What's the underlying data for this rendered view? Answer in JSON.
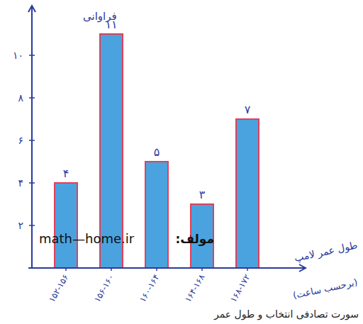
{
  "chart_data": {
    "type": "bar",
    "y_label": "فراوانی",
    "x_label": "طول عمر لامپ",
    "x_label_unit": "(برحسب ساعت)",
    "categories": [
      "۱۵۲-۱۵۶",
      "۱۵۶-۱۶۰",
      "۱۶۰-۱۶۴",
      "۱۶۴-۱۶۸",
      "۱۶۸-۱۷۲"
    ],
    "values": [
      4,
      11,
      5,
      3,
      7
    ],
    "value_labels": [
      "۴",
      "۱۱",
      "۵",
      "۳",
      "۷"
    ],
    "data_labels": true,
    "color": "#4aa3df",
    "ylim": [
      0,
      12
    ],
    "yticks": [
      {
        "value": 2,
        "label": "۲"
      },
      {
        "value": 4,
        "label": "۴"
      },
      {
        "value": 6,
        "label": "۶"
      },
      {
        "value": 8,
        "label": "۸"
      },
      {
        "value": 10,
        "label": "۱۰"
      }
    ],
    "grid": false,
    "annotations": [
      "math—home.ir",
      "مولف:"
    ],
    "caption": "سورت تصادفی انتخاب و طول عمر"
  }
}
